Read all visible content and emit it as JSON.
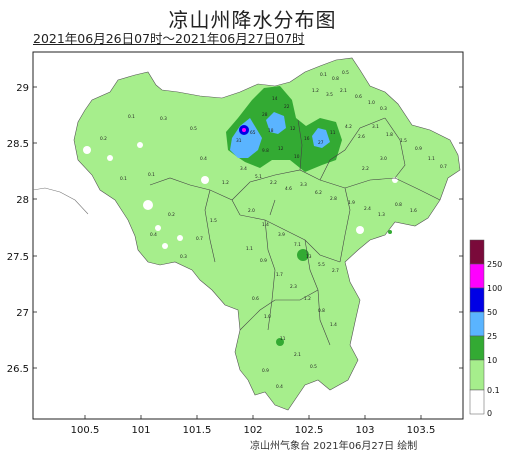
{
  "title": "凉山州降水分布图",
  "subtitle": "2021年06月26日07时～2021年06月27日07时",
  "footer": "凉山州气象台  2021年06月27日  绘制",
  "axes": {
    "x_ticks": [
      "100.5",
      "101",
      "101.5",
      "102",
      "102.5",
      "103",
      "103.5"
    ],
    "y_ticks": [
      "29",
      "28.5",
      "28",
      "27.5",
      "27",
      "26.5"
    ]
  },
  "legend": {
    "levels": [
      {
        "label": "250",
        "color": "#7a0a3a"
      },
      {
        "label": "100",
        "color": "#ff00ff"
      },
      {
        "label": "50",
        "color": "#0000e6"
      },
      {
        "label": "25",
        "color": "#5ab4ff"
      },
      {
        "label": "10",
        "color": "#33aa33"
      },
      {
        "label": "0.1",
        "color": "#a6ee8c"
      },
      {
        "label": "0",
        "color": "#ffffff"
      }
    ]
  },
  "colors": {
    "light_rain": "#a6ee8c",
    "moderate_rain": "#33aa33",
    "heavy_rain": "#5ab4ff",
    "rainstorm": "#0000e6",
    "heavy_rainstorm": "#ff00ff",
    "no_rain": "#ffffff",
    "boundary": "#444444"
  }
}
